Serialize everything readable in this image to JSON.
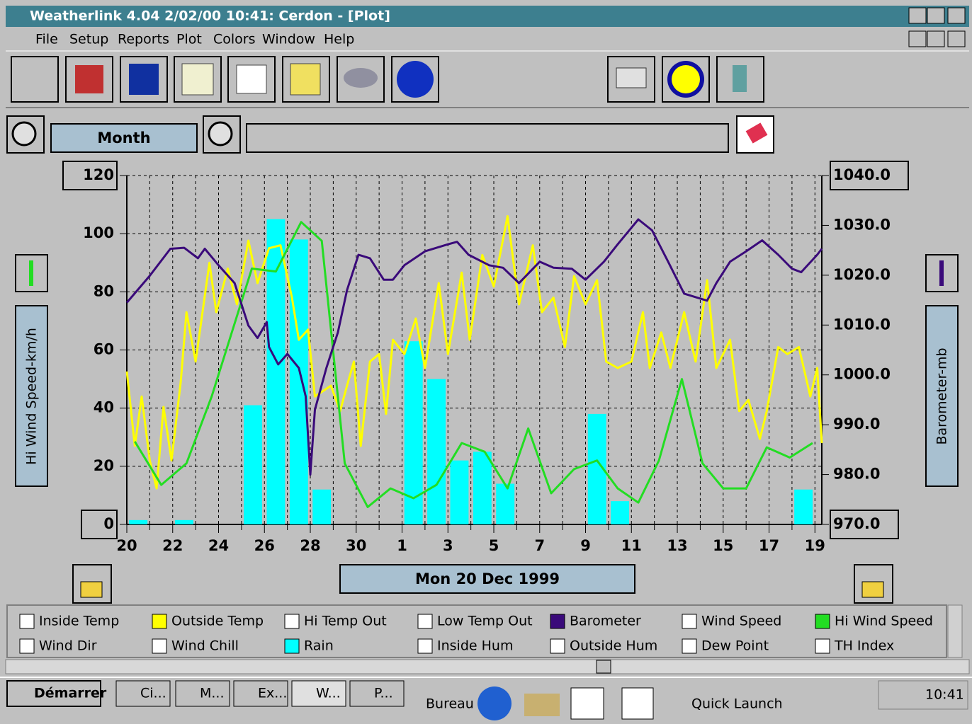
{
  "window": {
    "title": "Weatherlink 4.04   2/02/00  10:41: Cerdon - [Plot]",
    "menu": [
      "File",
      "Setup",
      "Reports",
      "Plot",
      "Colors",
      "Window",
      "Help"
    ]
  },
  "controls": {
    "zoom_label": "Month",
    "date": "Mon 20 Dec 1999"
  },
  "chart_data": {
    "type": "line",
    "y_label": "Hi Wind Speed-km/h",
    "y2_label": "Barometer-mb",
    "xlim": [
      0,
      30.3
    ],
    "xticks": [
      {
        "value": 0,
        "label": "20"
      },
      {
        "value": 2,
        "label": "22"
      },
      {
        "value": 4,
        "label": "24"
      },
      {
        "value": 6,
        "label": "26"
      },
      {
        "value": 8,
        "label": "28"
      },
      {
        "value": 10,
        "label": "30"
      },
      {
        "value": 12,
        "label": "1"
      },
      {
        "value": 14,
        "label": "3"
      },
      {
        "value": 16,
        "label": "5"
      },
      {
        "value": 18,
        "label": "7"
      },
      {
        "value": 20,
        "label": "9"
      },
      {
        "value": 22,
        "label": "11"
      },
      {
        "value": 24,
        "label": "13"
      },
      {
        "value": 26,
        "label": "15"
      },
      {
        "value": 28,
        "label": "17"
      },
      {
        "value": 30,
        "label": "19"
      }
    ],
    "x_minor_ticks": [
      1,
      3,
      5,
      7,
      9,
      11,
      13,
      15,
      17,
      19,
      21,
      23,
      25,
      27,
      29
    ],
    "ylim": [
      0,
      120
    ],
    "yticks": [
      0,
      20,
      40,
      60,
      80,
      100,
      120
    ],
    "y2lim": [
      970,
      1040
    ],
    "y2ticks": [
      {
        "value": 970,
        "label": "970.0"
      },
      {
        "value": 980,
        "label": "980.0"
      },
      {
        "value": 990,
        "label": "990.0"
      },
      {
        "value": 1000,
        "label": "1000.0"
      },
      {
        "value": 1010,
        "label": "1010.0"
      },
      {
        "value": 1020,
        "label": "1020.0"
      },
      {
        "value": 1030,
        "label": "1030.0"
      },
      {
        "value": 1040,
        "label": "1040.0"
      }
    ],
    "grid": true,
    "series": [
      {
        "name": "Rain",
        "color": "#00ffff",
        "type": "bar",
        "x": [
          0.5,
          2.5,
          5.5,
          6.5,
          7.5,
          8.5,
          12.5,
          13.5,
          14.5,
          15.5,
          16.5,
          20.5,
          21.5,
          29.5
        ],
        "values": [
          1.5,
          1.5,
          41,
          105,
          98,
          12,
          63,
          50,
          22,
          25,
          14,
          38,
          8,
          12
        ]
      },
      {
        "name": "Outside Temp",
        "color": "#ffff00",
        "type": "line",
        "x": [
          0,
          0.35,
          0.65,
          1.0,
          1.3,
          1.6,
          1.95,
          2.35,
          2.6,
          3.0,
          3.6,
          3.9,
          4.4,
          4.8,
          5.3,
          5.7,
          6.2,
          6.7,
          7.2,
          7.5,
          7.9,
          8.2,
          8.9,
          9.3,
          9.6,
          9.9,
          10.2,
          10.6,
          11.0,
          11.3,
          11.6,
          12.1,
          12.6,
          13.0,
          13.6,
          14.0,
          14.6,
          14.95,
          15.5,
          16.0,
          16.6,
          17.1,
          17.7,
          18.1,
          18.6,
          19.1,
          19.5,
          20.0,
          20.5,
          20.9,
          21.4,
          22.0,
          22.5,
          22.8,
          23.3,
          23.7,
          24.3,
          24.8,
          25.3,
          25.7,
          26.3,
          26.7,
          27.1,
          27.6,
          27.9,
          28.4,
          28.8,
          29.3,
          29.8,
          30.1,
          30.3
        ],
        "values": [
          52.6,
          27,
          44,
          22,
          12.4,
          40.4,
          22,
          49,
          73,
          56,
          90,
          73,
          88,
          75.7,
          97.6,
          83,
          95,
          96,
          78,
          63.5,
          67,
          44,
          47.7,
          39,
          47.7,
          56,
          27,
          56,
          58.6,
          38,
          63.5,
          58.6,
          70.8,
          53.8,
          83,
          58.6,
          86.6,
          63.5,
          92.7,
          81.8,
          106,
          75.7,
          96,
          73,
          78,
          61,
          85.4,
          75.7,
          84,
          56,
          53.8,
          56,
          73,
          53.8,
          66,
          53.8,
          73,
          56,
          84,
          53.8,
          63.5,
          39,
          42.8,
          29.4,
          39,
          61,
          58.6,
          61,
          44,
          53.8,
          28
        ]
      },
      {
        "name": "Hi Wind Speed",
        "color": "#22dd22",
        "type": "line",
        "x": [
          0.35,
          1.5,
          2.6,
          3.7,
          5.45,
          6.5,
          7.6,
          8.5,
          9.5,
          10.5,
          11.5,
          12.5,
          13.5,
          14.6,
          15.6,
          16.6,
          17.5,
          18.5,
          19.5,
          20.5,
          21.4,
          22.3,
          23.2,
          24.2,
          25.1,
          26.0,
          27.0,
          27.9,
          28.9,
          29.9
        ],
        "values": [
          28.5,
          13.6,
          21,
          44,
          88,
          87,
          104,
          97.5,
          21,
          6,
          12.4,
          9,
          13.6,
          28,
          25,
          12.4,
          33,
          10.7,
          19,
          22,
          12.4,
          7.5,
          22,
          50,
          21,
          12.4,
          12.4,
          26.5,
          23,
          28
        ]
      },
      {
        "name": "Barometer",
        "color": "#3a0a7a",
        "type": "line",
        "axis": "y2",
        "x": [
          0,
          1,
          1.9,
          2.5,
          3.1,
          3.4,
          4.0,
          4.7,
          5.3,
          5.7,
          6.1,
          6.2,
          6.6,
          7.0,
          7.5,
          7.8,
          8.0,
          8.2,
          8.7,
          9.2,
          9.6,
          10.1,
          10.6,
          11.2,
          11.6,
          12.1,
          13.0,
          14.0,
          14.4,
          14.9,
          15.8,
          16.4,
          17.1,
          18.0,
          18.6,
          19.4,
          20.0,
          20.8,
          21.4,
          22.3,
          22.9,
          23.6,
          24.3,
          25.3,
          25.7,
          26.3,
          27.0,
          27.7,
          28.4,
          29.0,
          29.4,
          30.1,
          30.3
        ],
        "values": [
          1014.5,
          1019.9,
          1025.3,
          1025.5,
          1023.4,
          1025.3,
          1022,
          1018.4,
          1009.9,
          1007.4,
          1010.6,
          1005.6,
          1002.1,
          1004.2,
          1001.4,
          995.7,
          980,
          993,
          1001.4,
          1008.5,
          1017,
          1024.1,
          1023.4,
          1019.1,
          1019.1,
          1022,
          1024.8,
          1026.2,
          1026.7,
          1024.1,
          1022,
          1021.5,
          1018.4,
          1022.7,
          1021.5,
          1021.3,
          1019.1,
          1022.7,
          1026.2,
          1031.2,
          1029,
          1022.7,
          1016.3,
          1014.9,
          1018.4,
          1022.7,
          1024.8,
          1027,
          1024.1,
          1021.3,
          1020.6,
          1024.1,
          1025.3
        ]
      }
    ],
    "unchecked_options": [
      "Inside Temp",
      "Hi Temp Out",
      "Low Temp Out",
      "Wind Speed",
      "Wind Dir",
      "Wind Chill",
      "Inside Hum",
      "Outside Hum",
      "Dew Point",
      "TH Index"
    ]
  },
  "taskbar": {
    "start": "Démarrer",
    "tasks": [
      "Ci...",
      "M...",
      "Ex...",
      "W...",
      "P..."
    ],
    "desktop": "Bureau",
    "quick_launch": "Quick Launch",
    "clock": "10:41"
  }
}
